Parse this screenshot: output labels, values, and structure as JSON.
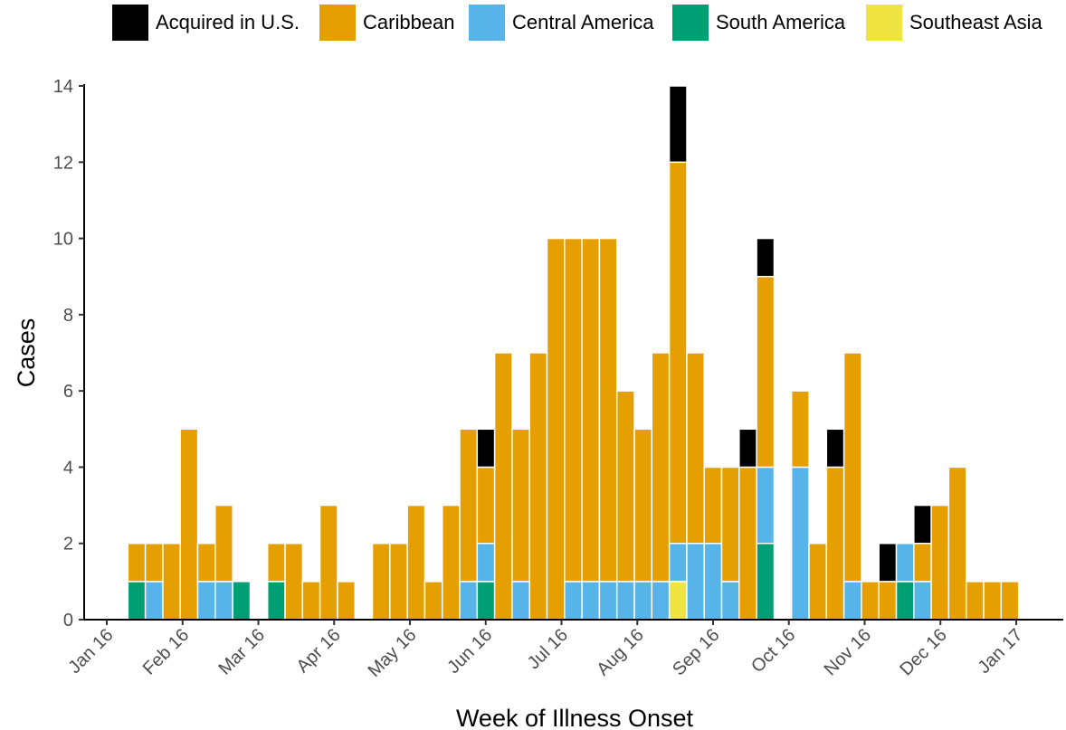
{
  "chart_data": {
    "type": "bar",
    "stacked": true,
    "x_label": "Week of Illness Onset",
    "y_label": "Cases",
    "categories": [
      null,
      null,
      null,
      null,
      null,
      null,
      null,
      null,
      null,
      null,
      null,
      null,
      null,
      null,
      null,
      null,
      null,
      null,
      null,
      null,
      null,
      null,
      null,
      null,
      null,
      null,
      null,
      null,
      null,
      null,
      null,
      null,
      null,
      null,
      null,
      null,
      null,
      null,
      null,
      null,
      null,
      null,
      null,
      null,
      null,
      null,
      null,
      null,
      null,
      null,
      null
    ],
    "xtick_labels": [
      "Jan 16",
      "Feb 16",
      "Mar 16",
      "Apr 16",
      "May 16",
      "Jun 16",
      "Jul 16",
      "Aug 16",
      "Sep 16",
      "Oct 16",
      "Nov 16",
      "Dec 16",
      "Jan 17"
    ],
    "ylim": [
      0,
      14
    ],
    "yticks": [
      0,
      2,
      4,
      6,
      8,
      10,
      12,
      14
    ],
    "series": [
      {
        "name": "Southeast Asia",
        "color": "#F0E442",
        "values": [
          0,
          0,
          0,
          0,
          0,
          0,
          0,
          0,
          0,
          0,
          0,
          0,
          0,
          0,
          0,
          0,
          0,
          0,
          0,
          0,
          0,
          0,
          0,
          0,
          0,
          0,
          0,
          0,
          0,
          0,
          0,
          1,
          0,
          0,
          0,
          0,
          0,
          0,
          0,
          0,
          0,
          0,
          0,
          0,
          0,
          0,
          0,
          0,
          0,
          0,
          0
        ]
      },
      {
        "name": "South America",
        "color": "#009E73",
        "values": [
          1,
          0,
          0,
          0,
          0,
          0,
          1,
          0,
          1,
          0,
          0,
          0,
          0,
          0,
          0,
          0,
          0,
          0,
          0,
          0,
          1,
          0,
          0,
          0,
          0,
          0,
          0,
          0,
          0,
          0,
          0,
          0,
          0,
          0,
          0,
          0,
          2,
          0,
          0,
          0,
          0,
          0,
          0,
          0,
          1,
          0,
          0,
          0,
          0,
          0,
          0
        ]
      },
      {
        "name": "Central America",
        "color": "#56B4E9",
        "values": [
          0,
          1,
          0,
          0,
          1,
          1,
          0,
          0,
          0,
          0,
          0,
          0,
          0,
          0,
          0,
          0,
          0,
          0,
          0,
          1,
          1,
          0,
          1,
          0,
          0,
          1,
          1,
          1,
          1,
          1,
          1,
          1,
          2,
          2,
          1,
          0,
          2,
          0,
          4,
          0,
          0,
          1,
          0,
          0,
          1,
          1,
          0,
          0,
          0,
          0,
          0
        ]
      },
      {
        "name": "Caribbean",
        "color": "#E69F00",
        "values": [
          1,
          1,
          2,
          5,
          1,
          2,
          0,
          0,
          1,
          2,
          1,
          3,
          1,
          0,
          2,
          2,
          3,
          1,
          3,
          4,
          2,
          7,
          4,
          7,
          10,
          9,
          9,
          9,
          5,
          4,
          6,
          10,
          5,
          2,
          3,
          4,
          5,
          0,
          2,
          2,
          4,
          6,
          1,
          1,
          0,
          1,
          3,
          4,
          1,
          1,
          1
        ]
      },
      {
        "name": "Acquired in U.S.",
        "color": "#000000",
        "values": [
          0,
          0,
          0,
          0,
          0,
          0,
          0,
          0,
          0,
          0,
          0,
          0,
          0,
          0,
          0,
          0,
          0,
          0,
          0,
          0,
          1,
          0,
          0,
          0,
          0,
          0,
          0,
          0,
          0,
          0,
          0,
          2,
          0,
          0,
          0,
          1,
          1,
          0,
          0,
          0,
          1,
          0,
          0,
          1,
          0,
          1,
          0,
          0,
          0,
          0,
          0
        ]
      }
    ]
  }
}
